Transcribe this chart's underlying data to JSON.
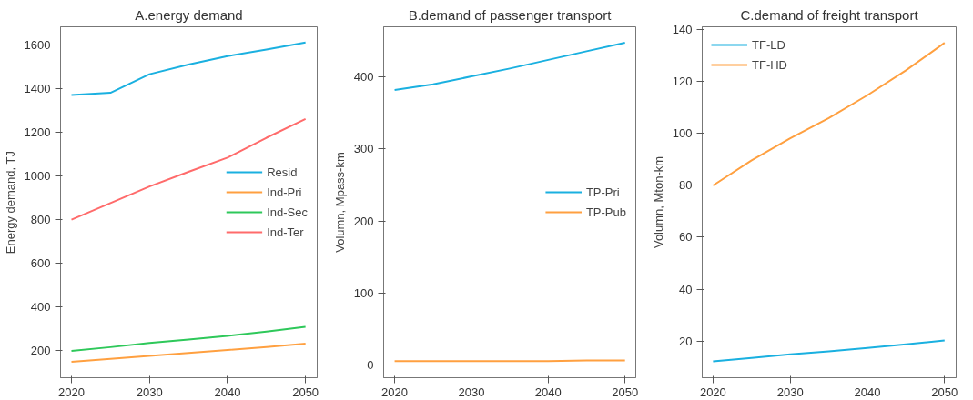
{
  "chart_data": [
    {
      "type": "line",
      "title": "A.energy demand",
      "ylabel": "Energy demand, TJ",
      "x": [
        2020,
        2025,
        2030,
        2035,
        2040,
        2045,
        2050
      ],
      "xlim": [
        2018.6,
        2051.5
      ],
      "xticks": [
        2020,
        2030,
        2040,
        2050
      ],
      "ylim": [
        76,
        1683
      ],
      "yticks": [
        200,
        400,
        600,
        800,
        1000,
        1200,
        1400,
        1600
      ],
      "grid": false,
      "legend": "right",
      "series": [
        {
          "name": "Resid",
          "color": "#1ab0e0",
          "values": [
            1371,
            1381,
            1466,
            1510,
            1549,
            1579,
            1611
          ]
        },
        {
          "name": "Ind-Pri",
          "color": "#ffa040",
          "values": [
            149,
            162,
            176,
            189,
            203,
            217,
            232
          ]
        },
        {
          "name": "Ind-Sec",
          "color": "#2ec85a",
          "values": [
            199,
            216,
            235,
            251,
            268,
            287,
            309
          ]
        },
        {
          "name": "Ind-Ter",
          "color": "#ff6b6b",
          "values": [
            800,
            876,
            952,
            1019,
            1084,
            1175,
            1261
          ]
        }
      ]
    },
    {
      "type": "line",
      "title": "B.demand of passenger transport",
      "ylabel": "Volumn, Mpass-km",
      "x": [
        2020,
        2025,
        2030,
        2035,
        2040,
        2045,
        2050
      ],
      "xlim": [
        2018.57,
        2051.4
      ],
      "xticks": [
        2020,
        2030,
        2040,
        2050
      ],
      "ylim": [
        -18,
        470
      ],
      "yticks": [
        0,
        100,
        200,
        300,
        400
      ],
      "grid": false,
      "legend": "right",
      "series": [
        {
          "name": "TP-Pri",
          "color": "#1ab0e0",
          "values": [
            382,
            390,
            401,
            412,
            424,
            436,
            448
          ]
        },
        {
          "name": "TP-Pub",
          "color": "#ffa040",
          "values": [
            5,
            5,
            5,
            5,
            5,
            6,
            6
          ]
        }
      ]
    },
    {
      "type": "line",
      "title": "C.demand of freight transport",
      "ylabel": "Volumn, Mton-km",
      "x": [
        2020,
        2025,
        2030,
        2035,
        2040,
        2045,
        2050
      ],
      "xlim": [
        2018.6,
        2051.5
      ],
      "xticks": [
        2020,
        2030,
        2040,
        2050
      ],
      "ylim": [
        5.8,
        141.2
      ],
      "yticks": [
        20,
        40,
        60,
        80,
        100,
        120,
        140
      ],
      "grid": false,
      "legend": "top left",
      "series": [
        {
          "name": "TF-LD",
          "color": "#1ab0e0",
          "values": [
            12.1,
            13.4,
            14.8,
            16,
            17.3,
            18.7,
            20.2
          ]
        },
        {
          "name": "TF-HD",
          "color": "#ffa040",
          "values": [
            80,
            89.7,
            98.2,
            106,
            114.8,
            124.4,
            135
          ]
        }
      ]
    }
  ]
}
